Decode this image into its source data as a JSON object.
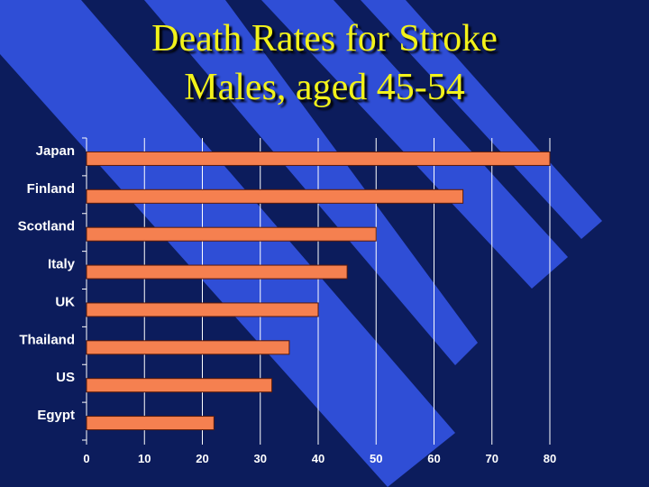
{
  "slide": {
    "title_line1": "Death Rates for Stroke",
    "title_line2": "Males, aged 45-54"
  },
  "colors": {
    "background": "#0c1c5c",
    "stripe": "#2f4ed6",
    "bar": "#f58050",
    "bar_stroke": "#5a1a08",
    "title": "#f2f21a",
    "grid": "#ffffff"
  },
  "chart_data": {
    "type": "bar",
    "orientation": "horizontal",
    "title": "Death Rates for Stroke Males, aged 45-54",
    "xlabel": "",
    "ylabel": "",
    "categories": [
      "Japan",
      "Finland",
      "Scotland",
      "Italy",
      "UK",
      "Thailand",
      "US",
      "Egypt"
    ],
    "values": [
      80,
      65,
      50,
      45,
      40,
      35,
      32,
      22
    ],
    "xlim": [
      0,
      80
    ],
    "xticks": [
      0,
      10,
      20,
      30,
      40,
      50,
      60,
      70,
      80
    ],
    "grid": "vertical"
  }
}
